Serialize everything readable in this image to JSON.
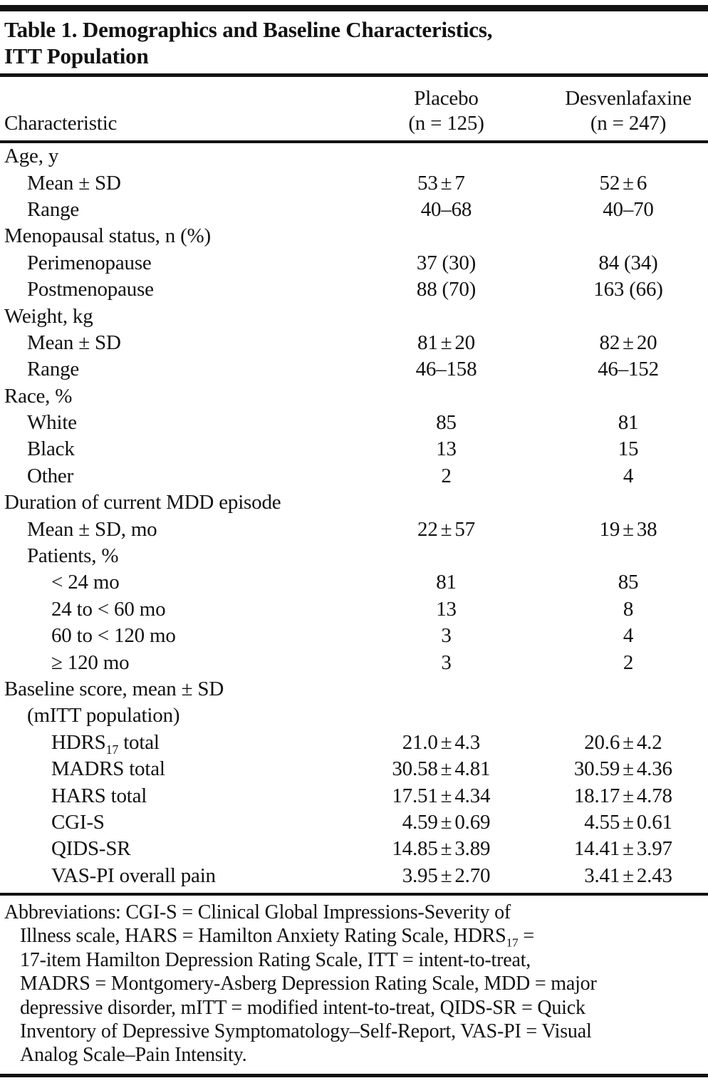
{
  "colors": {
    "background": "#ffffff",
    "text": "#121212",
    "rule": "#121212"
  },
  "table": {
    "title_line1": "Table 1. Demographics and Baseline Characteristics,",
    "title_line2": "ITT Population",
    "columns": {
      "characteristic": "Characteristic",
      "placebo_name": "Placebo",
      "placebo_n": "(n = 125)",
      "desvenlafaxine_name": "Desvenlafaxine",
      "desvenlafaxine_n": "(n = 247)"
    },
    "rows": [
      {
        "indent": 0,
        "label": "Age, y",
        "placebo": "",
        "desvenlafaxine": ""
      },
      {
        "indent": 1,
        "label": "Mean ± SD",
        "placebo": "53 ± 7",
        "desvenlafaxine": "52 ± 6"
      },
      {
        "indent": 1,
        "label": "Range",
        "placebo": "40–68",
        "desvenlafaxine": "40–70"
      },
      {
        "indent": 0,
        "label": "Menopausal status, n (%)",
        "placebo": "",
        "desvenlafaxine": ""
      },
      {
        "indent": 1,
        "label": "Perimenopause",
        "placebo": "37 (30)",
        "desvenlafaxine": "84 (34)"
      },
      {
        "indent": 1,
        "label": "Postmenopause",
        "placebo": "88 (70)",
        "desvenlafaxine": "163 (66)"
      },
      {
        "indent": 0,
        "label": "Weight, kg",
        "placebo": "",
        "desvenlafaxine": ""
      },
      {
        "indent": 1,
        "label": "Mean ± SD",
        "placebo": "81 ± 20",
        "desvenlafaxine": "82 ± 20"
      },
      {
        "indent": 1,
        "label": "Range",
        "placebo": "46–158",
        "desvenlafaxine": "46–152"
      },
      {
        "indent": 0,
        "label": "Race, %",
        "placebo": "",
        "desvenlafaxine": ""
      },
      {
        "indent": 1,
        "label": "White",
        "placebo": "85",
        "desvenlafaxine": "81"
      },
      {
        "indent": 1,
        "label": "Black",
        "placebo": "13",
        "desvenlafaxine": "15"
      },
      {
        "indent": 1,
        "label": "Other",
        "placebo": "2",
        "desvenlafaxine": "4"
      },
      {
        "indent": 0,
        "label": "Duration of current MDD episode",
        "placebo": "",
        "desvenlafaxine": ""
      },
      {
        "indent": 1,
        "label": "Mean ± SD, mo",
        "placebo": "22 ± 57",
        "desvenlafaxine": "19 ± 38"
      },
      {
        "indent": 1,
        "label": "Patients, %",
        "placebo": "",
        "desvenlafaxine": ""
      },
      {
        "indent": 2,
        "label": "< 24 mo",
        "placebo": "81",
        "desvenlafaxine": "85"
      },
      {
        "indent": 2,
        "label": "24 to < 60 mo",
        "placebo": "13",
        "desvenlafaxine": "8"
      },
      {
        "indent": 2,
        "label": "60 to < 120 mo",
        "placebo": "3",
        "desvenlafaxine": "4"
      },
      {
        "indent": 2,
        "label": "≥ 120 mo",
        "placebo": "3",
        "desvenlafaxine": "2"
      },
      {
        "indent": 0,
        "label": "Baseline score, mean ± SD",
        "placebo": "",
        "desvenlafaxine": ""
      },
      {
        "indent": 1,
        "label": "(mITT population)",
        "placebo": "",
        "desvenlafaxine": ""
      },
      {
        "indent": 2,
        "label": "HDRS_{17} total",
        "placebo": "21.0 ± 4.3",
        "desvenlafaxine": "20.6 ± 4.2"
      },
      {
        "indent": 2,
        "label": "MADRS total",
        "placebo": "30.58 ± 4.81",
        "desvenlafaxine": "30.59 ± 4.36"
      },
      {
        "indent": 2,
        "label": "HARS total",
        "placebo": "17.51 ± 4.34",
        "desvenlafaxine": "18.17 ± 4.78"
      },
      {
        "indent": 2,
        "label": "CGI-S",
        "placebo": "4.59 ± 0.69",
        "desvenlafaxine": "4.55 ± 0.61"
      },
      {
        "indent": 2,
        "label": "QIDS-SR",
        "placebo": "14.85 ± 3.89",
        "desvenlafaxine": "14.41 ± 3.97"
      },
      {
        "indent": 2,
        "label": "VAS-PI overall pain",
        "placebo": "3.95 ± 2.70",
        "desvenlafaxine": "3.41 ± 2.43"
      }
    ],
    "footnote_lines": [
      "Abbreviations: CGI-S = Clinical Global Impressions-Severity of",
      "Illness scale, HARS = Hamilton Anxiety Rating Scale, HDRS_{17} =",
      "17-item Hamilton Depression Rating Scale, ITT = intent-to-treat,",
      "MADRS = Montgomery-Asberg Depression Rating Scale, MDD = major",
      "depressive disorder, mITT = modified intent-to-treat, QIDS-SR = Quick",
      "Inventory of Depressive Symptomatology–Self-Report, VAS-PI = Visual",
      "Analog Scale–Pain Intensity."
    ]
  }
}
